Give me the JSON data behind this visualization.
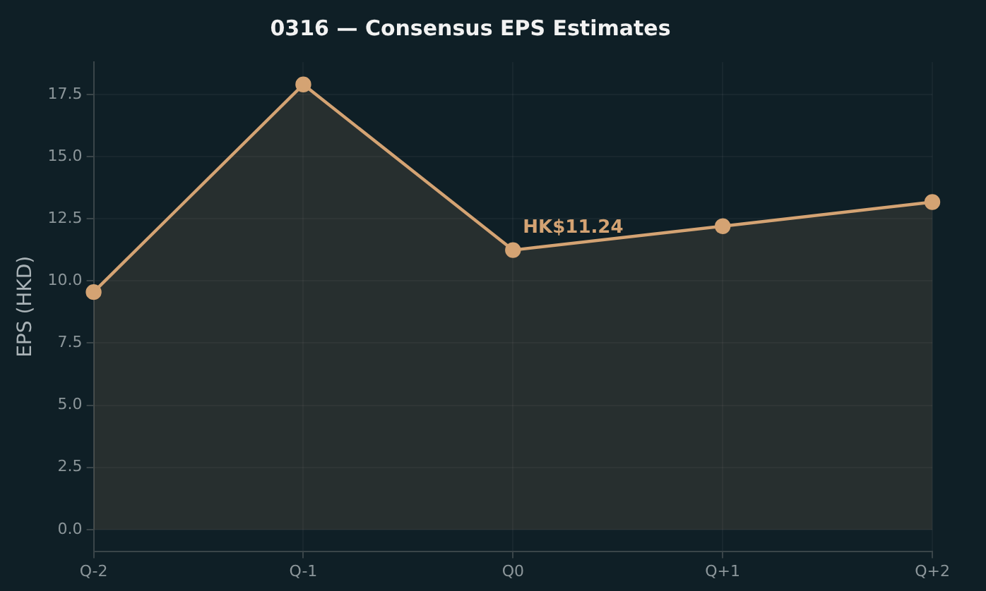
{
  "chart_data": {
    "type": "area",
    "title": "0316 — Consensus EPS Estimates",
    "ylabel": "EPS (HKD)",
    "categories": [
      "Q-2",
      "Q-1",
      "Q0",
      "Q+1",
      "Q+2"
    ],
    "series": [
      {
        "color": "#d4a373",
        "values": [
          9.55,
          17.9,
          11.24,
          12.2,
          13.17
        ]
      }
    ],
    "ylim": [
      -0.87,
      18.8
    ],
    "yticks": [
      {
        "value": 0,
        "label": "0.0"
      },
      {
        "value": 2.5,
        "label": "2.5"
      },
      {
        "value": 5,
        "label": "5.0"
      },
      {
        "value": 7.5,
        "label": "7.5"
      },
      {
        "value": 10,
        "label": "10.0"
      },
      {
        "value": 12.5,
        "label": "12.5"
      },
      {
        "value": 15,
        "label": "15.0"
      },
      {
        "value": 17.5,
        "label": "17.5"
      }
    ],
    "annotations": [
      {
        "text": "HK$11.24",
        "x": "Q0",
        "y": 11.24
      }
    ],
    "grid": true,
    "marker": "circle",
    "line_style": "solid",
    "legend": false
  }
}
